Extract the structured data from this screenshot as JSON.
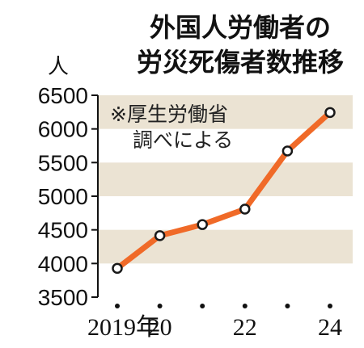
{
  "title_lines": [
    "外国人労働者の",
    "労災死傷者数推移"
  ],
  "note_lines": [
    "※厚生労働省",
    "調べによる"
  ],
  "colors": {
    "line": "#f06a28",
    "marker_fill": "#ffffff",
    "marker_stroke": "#1a1a1a",
    "band": "#ebe3d3",
    "axis": "#111111"
  },
  "chart_data": {
    "type": "line",
    "ylabel": "人",
    "ylim": [
      3500,
      6500
    ],
    "yticks": [
      6500,
      6000,
      5500,
      5000,
      4500,
      4000,
      3500
    ],
    "x": [
      2019,
      2020,
      2021,
      2022,
      2023,
      2024
    ],
    "xtick_labels": [
      "2019年",
      "20",
      "",
      "22",
      "",
      "24"
    ],
    "values": [
      3928,
      4414,
      4578,
      4808,
      5672,
      6244
    ],
    "grid": "alternating horizontal bands",
    "legend": "none"
  }
}
